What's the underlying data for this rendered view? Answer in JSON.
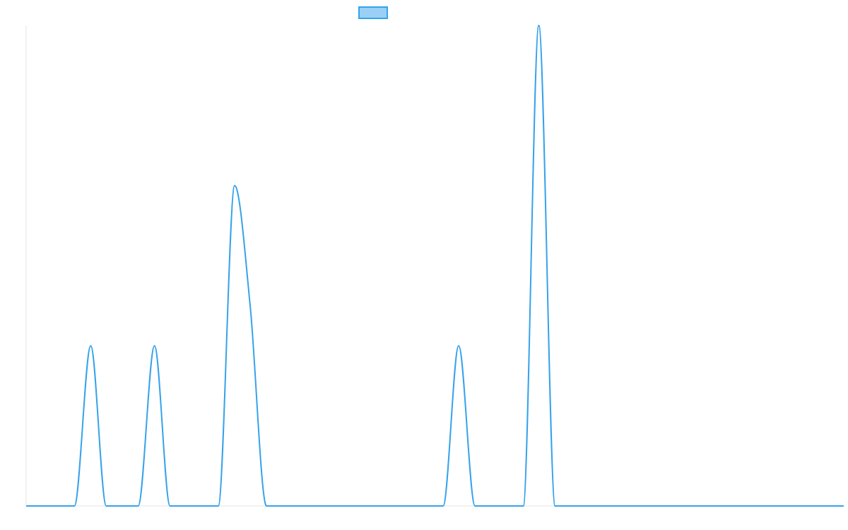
{
  "chart_data": {
    "type": "line",
    "title": "",
    "xlabel": "",
    "ylabel": "",
    "grid": false,
    "legend": {
      "placement": "top-center",
      "entries": [
        {
          "name": "",
          "color": "#36a2eb",
          "fill": "#9ad0f5"
        }
      ]
    },
    "xlim": [
      0,
      1
    ],
    "ylim": [
      0,
      3
    ],
    "series": [
      {
        "name": "",
        "color": "#36a2eb",
        "x": [
          0.0,
          0.059,
          0.079,
          0.098,
          0.137,
          0.157,
          0.176,
          0.235,
          0.255,
          0.274,
          0.294,
          0.51,
          0.529,
          0.549,
          0.608,
          0.627,
          0.647,
          1.0
        ],
        "y": [
          0,
          0,
          1,
          0,
          0,
          1,
          0,
          0,
          2,
          1.25,
          0,
          0,
          1,
          0,
          0,
          3,
          0,
          0
        ]
      }
    ]
  }
}
